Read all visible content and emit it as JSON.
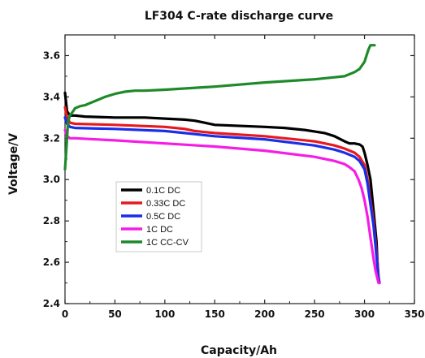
{
  "chart_data": {
    "type": "line",
    "title": "LF304 C-rate discharge curve",
    "xlabel": "Capacity/Ah",
    "ylabel": "Voltage/V",
    "xlim": [
      0,
      350
    ],
    "ylim": [
      2.4,
      3.7
    ],
    "xticks": [
      0,
      50,
      100,
      150,
      200,
      250,
      300,
      350
    ],
    "yticks": [
      2.4,
      2.6,
      2.8,
      3.0,
      3.2,
      3.4,
      3.6
    ],
    "xtick_labels": [
      "0",
      "50",
      "100",
      "150",
      "200",
      "250",
      "300",
      "350"
    ],
    "ytick_labels": [
      "2.4",
      "2.6",
      "2.8",
      "3.0",
      "3.2",
      "3.4",
      "3.6"
    ],
    "grid": false,
    "legend_position": "center-left",
    "series": [
      {
        "name": "0.1C DC",
        "color": "#000000",
        "x": [
          0,
          2,
          5,
          10,
          20,
          50,
          80,
          100,
          120,
          130,
          140,
          150,
          200,
          220,
          240,
          260,
          270,
          280,
          285,
          290,
          295,
          298,
          300,
          303,
          306,
          308,
          310,
          312,
          313,
          314,
          315
        ],
        "y": [
          3.42,
          3.33,
          3.31,
          3.31,
          3.305,
          3.3,
          3.3,
          3.295,
          3.29,
          3.285,
          3.275,
          3.265,
          3.255,
          3.25,
          3.24,
          3.225,
          3.21,
          3.185,
          3.175,
          3.175,
          3.17,
          3.16,
          3.13,
          3.07,
          3.0,
          2.9,
          2.8,
          2.7,
          2.6,
          2.52,
          2.5
        ]
      },
      {
        "name": "0.33C DC",
        "color": "#e8191d",
        "x": [
          0,
          2,
          5,
          10,
          50,
          100,
          120,
          130,
          140,
          150,
          200,
          250,
          270,
          280,
          290,
          295,
          300,
          303,
          306,
          309,
          311,
          313,
          314,
          315
        ],
        "y": [
          3.35,
          3.3,
          3.275,
          3.27,
          3.265,
          3.255,
          3.245,
          3.235,
          3.23,
          3.225,
          3.21,
          3.185,
          3.165,
          3.15,
          3.13,
          3.11,
          3.07,
          3.0,
          2.9,
          2.8,
          2.7,
          2.6,
          2.53,
          2.5
        ]
      },
      {
        "name": "0.5C DC",
        "color": "#1a2ee8",
        "x": [
          0,
          2,
          5,
          10,
          50,
          100,
          120,
          130,
          140,
          150,
          200,
          250,
          270,
          280,
          290,
          295,
          300,
          303,
          306,
          309,
          311,
          313,
          314,
          315
        ],
        "y": [
          3.3,
          3.27,
          3.255,
          3.25,
          3.245,
          3.235,
          3.225,
          3.22,
          3.215,
          3.21,
          3.195,
          3.165,
          3.145,
          3.13,
          3.11,
          3.09,
          3.05,
          2.98,
          2.88,
          2.78,
          2.68,
          2.58,
          2.52,
          2.5
        ]
      },
      {
        "name": "1C DC",
        "color": "#f51ce6",
        "x": [
          0,
          2,
          5,
          10,
          50,
          100,
          150,
          200,
          250,
          270,
          280,
          285,
          290,
          294,
          297,
          300,
          303,
          306,
          309,
          311,
          313,
          314,
          315
        ],
        "y": [
          3.24,
          3.21,
          3.2,
          3.2,
          3.19,
          3.175,
          3.16,
          3.14,
          3.11,
          3.09,
          3.075,
          3.06,
          3.04,
          3.0,
          2.96,
          2.9,
          2.82,
          2.72,
          2.62,
          2.56,
          2.52,
          2.5,
          2.5
        ]
      },
      {
        "name": "1C CC-CV",
        "color": "#1e8a2a",
        "x": [
          0,
          1,
          2,
          3,
          5,
          8,
          10,
          15,
          20,
          25,
          30,
          40,
          50,
          60,
          70,
          80,
          100,
          150,
          200,
          250,
          270,
          280,
          290,
          295,
          300,
          302,
          304,
          306,
          308,
          310
        ],
        "y": [
          3.05,
          3.12,
          3.2,
          3.28,
          3.31,
          3.33,
          3.345,
          3.355,
          3.36,
          3.37,
          3.38,
          3.4,
          3.415,
          3.425,
          3.43,
          3.43,
          3.435,
          3.45,
          3.47,
          3.485,
          3.495,
          3.5,
          3.52,
          3.535,
          3.57,
          3.6,
          3.63,
          3.65,
          3.65,
          3.65
        ]
      }
    ]
  }
}
